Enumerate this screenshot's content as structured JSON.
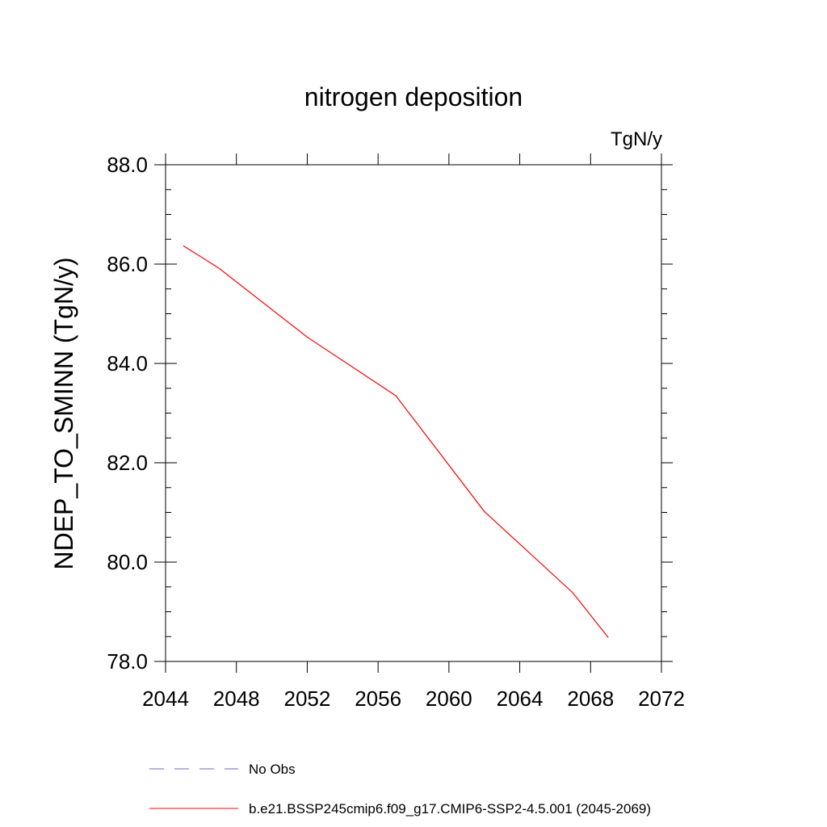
{
  "chart_data": {
    "type": "line",
    "title": "nitrogen deposition",
    "units_label": "TgN/y",
    "ylabel": "NDEP_TO_SMINN  (TgN/y)",
    "xlabel": "",
    "xlim": [
      2044,
      2072
    ],
    "ylim": [
      78.0,
      88.0
    ],
    "x_ticks": [
      2044,
      2048,
      2052,
      2056,
      2060,
      2064,
      2068,
      2072
    ],
    "x_tick_labels": [
      "2044",
      "2048",
      "2052",
      "2056",
      "2060",
      "2064",
      "2068",
      "2072"
    ],
    "y_ticks": [
      78.0,
      80.0,
      82.0,
      84.0,
      86.0,
      88.0
    ],
    "y_tick_labels": [
      "78.0",
      "80.0",
      "82.0",
      "84.0",
      "86.0",
      "88.0"
    ],
    "grid": false,
    "legend_placement": "bottom",
    "series": [
      {
        "name": "No Obs",
        "color": "#6a6ab4",
        "style": "dashed",
        "x": [],
        "y": []
      },
      {
        "name": "b.e21.BSSP245cmip6.f09_g17.CMIP6-SSP2-4.5.001 (2045-2069)",
        "color": "#ff0000",
        "style": "solid",
        "x": [
          2045,
          2047,
          2052,
          2057,
          2062,
          2067,
          2069
        ],
        "y": [
          86.37,
          85.92,
          84.53,
          83.35,
          81.02,
          79.38,
          78.48
        ]
      }
    ]
  }
}
